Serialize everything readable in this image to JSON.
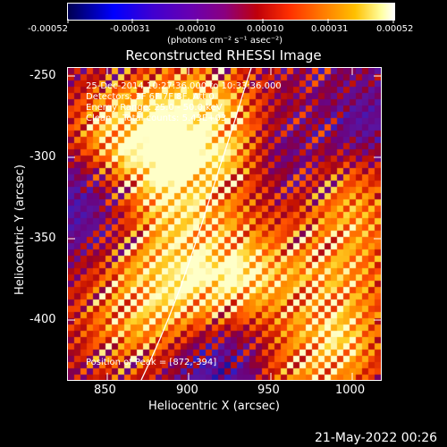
{
  "colorbar": {
    "tick_labels": [
      "-0.00052",
      "-0.00031",
      "-0.00010",
      "0.00010",
      "0.00031",
      "0.00052"
    ],
    "unit_label": "(photons cm⁻² s⁻¹ asec⁻²)"
  },
  "title": "Reconstructed RHESSI Image",
  "overlay": {
    "time_range": "25-Dec-2014 10:27:36.000 to 10:33:36.000",
    "detectors": "Detectors: 3F 6F 7F 8F, Att 0",
    "energy_range": "Energy Range: 25.0 - 50.0 keV",
    "clean_counts": "Clean    Total counts: 5.43E+03",
    "peak_position": "Position of Peak = [872,-394]"
  },
  "axes": {
    "xlabel": "Heliocentric X (arcsec)",
    "ylabel": "Heliocentric Y (arcsec)",
    "x_ticks": [
      "850",
      "900",
      "950",
      "1000"
    ],
    "y_ticks": [
      "-250",
      "-300",
      "-350",
      "-400"
    ],
    "x_range": [
      825,
      1017
    ],
    "y_range": [
      -437,
      -245
    ]
  },
  "footer": {
    "timestamp": "21-May-2022 00:26"
  },
  "colors": {
    "background": "#000000",
    "foreground": "#ffffff",
    "limb_line": "#ffffff"
  },
  "image_info": {
    "colormap": "RHESSI red-yellow (blue for negative)",
    "peak_arcsec": [
      872,
      -394
    ],
    "limb_visible": true
  }
}
